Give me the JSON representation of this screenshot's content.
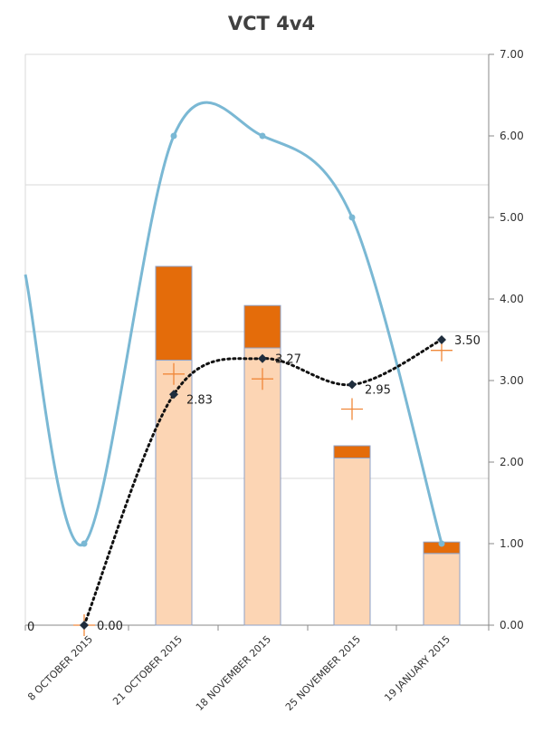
{
  "chart_data": {
    "type": "bar",
    "title": "VCT 4v4",
    "categories": [
      "8 OCTOBER 2015",
      "21 OCTOBER 2015",
      "18 NOVEMBER 2015",
      "25 NOVEMBER 2015",
      "19 JANUARY 2015"
    ],
    "ylim": [
      0,
      7
    ],
    "y_ticks": [
      "0.00",
      "1.00",
      "2.00",
      "3.00",
      "4.00",
      "5.00",
      "6.00",
      "7.00"
    ],
    "grid": true,
    "bar_stack": [
      {
        "color": "#fcd5b4",
        "values": [
          0,
          3.25,
          3.4,
          2.05,
          0.88
        ]
      },
      {
        "color": "#e46c0a",
        "values": [
          0,
          1.15,
          0.52,
          0.15,
          0.14
        ]
      }
    ],
    "line_series": {
      "color": "#7ab8d4",
      "values": [
        1.0,
        6.0,
        6.0,
        5.0,
        1.0
      ],
      "start_value": 4.3
    },
    "dotted_series": {
      "color": "#111111",
      "values": [
        0.0,
        2.83,
        3.27,
        2.95,
        3.5
      ],
      "labels": [
        "0.00",
        "2.83",
        "3.27",
        "2.95",
        "3.50"
      ]
    },
    "cross_markers": {
      "color": "#f0883a",
      "values": [
        0.0,
        3.08,
        3.02,
        2.65,
        3.37
      ]
    },
    "extra_label": "0"
  }
}
